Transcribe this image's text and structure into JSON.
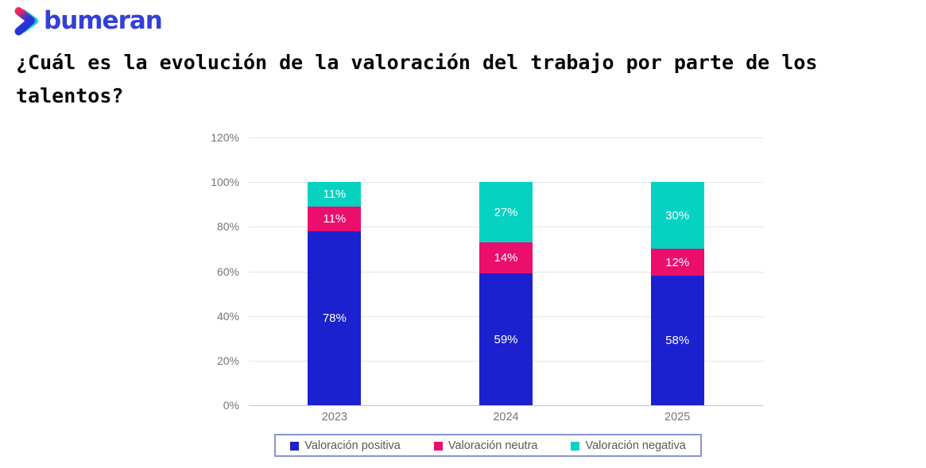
{
  "brand": {
    "name": "bumeran"
  },
  "title": "¿Cuál es la evolución de la valoración del trabajo por parte de los talentos?",
  "chart_data": {
    "type": "bar",
    "stacked": true,
    "title": "¿Cuál es la evolución de la valoración del trabajo por parte de los talentos?",
    "categories": [
      "2023",
      "2024",
      "2025"
    ],
    "series": [
      {
        "name": "Valoración positiva",
        "color": "#1B21CE",
        "values": [
          78,
          59,
          58
        ]
      },
      {
        "name": "Valoración neutra",
        "color": "#EB0E6D",
        "values": [
          11,
          14,
          12
        ]
      },
      {
        "name": "Valoración negativa",
        "color": "#06D2C2",
        "values": [
          11,
          27,
          30
        ]
      }
    ],
    "xlabel": "",
    "ylabel": "",
    "ylim": [
      0,
      120
    ],
    "y_ticks": [
      "120%",
      "100%",
      "80%",
      "60%",
      "40%",
      "20%",
      "0%"
    ],
    "grid": true,
    "legend_position": "bottom",
    "bar_label_format": "{value}%"
  },
  "colors": {
    "positive": "#1B21CE",
    "neutral": "#EB0E6D",
    "negative": "#06D2C2",
    "wordmark": "#3340D6",
    "gridline": "#E4E4E4",
    "axis_line": "#C6C6C6",
    "tick_text": "#757575",
    "legend_text": "#595959",
    "legend_border": "#8A93D4",
    "bar_label_text": "#FFFFFF"
  }
}
